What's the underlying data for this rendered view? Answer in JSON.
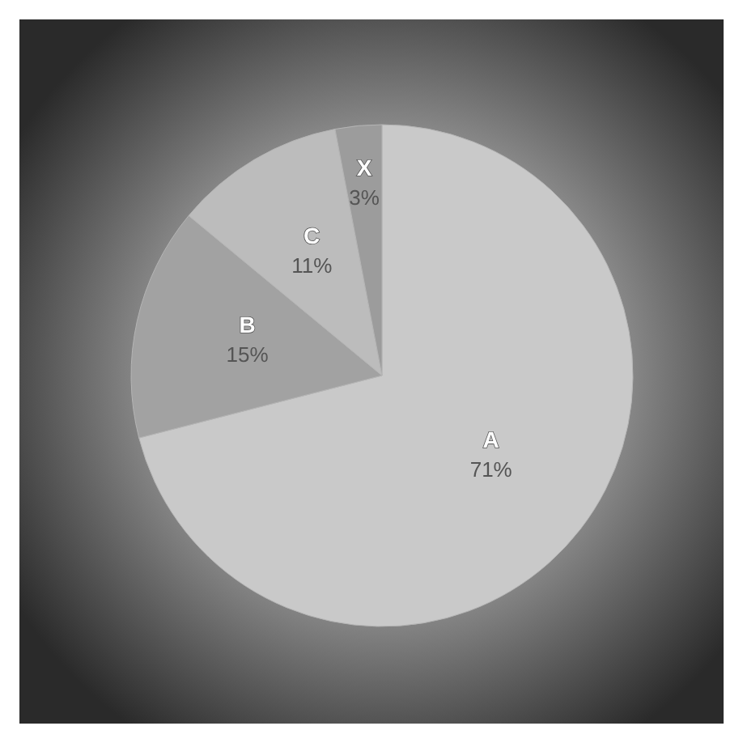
{
  "chart_data": {
    "type": "pie",
    "categories": [
      "A",
      "B",
      "C",
      "X"
    ],
    "values": [
      71,
      15,
      11,
      3
    ],
    "value_labels": [
      "71%",
      "15%",
      "11%",
      "3%"
    ],
    "colors": [
      "#c9c9c9",
      "#a2a2a2",
      "#bcbcbc",
      "#9c9c9c"
    ]
  }
}
